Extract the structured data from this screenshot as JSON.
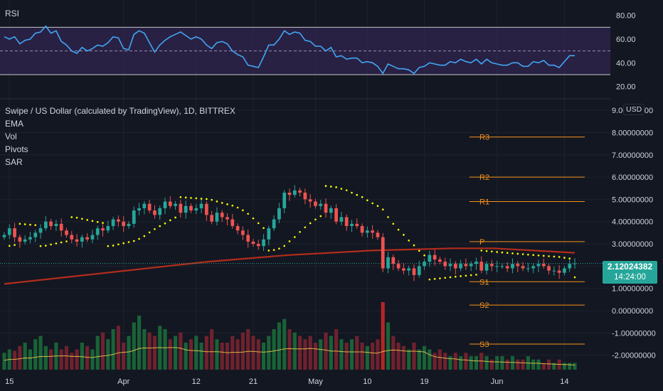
{
  "colors": {
    "background": "#131722",
    "grid": "#1e222d",
    "up": "#26a69a",
    "down": "#ef5350",
    "rsi_line": "#42a5f5",
    "rsi_band": "#3a2a5e",
    "ema": "#b22d1b",
    "sar": "#ffff00",
    "pivot": "#f7931a",
    "axis_text": "#d1d4dc",
    "vol_ma": "#ffd54f"
  },
  "chart_data": [
    {
      "type": "line",
      "title": "RSI",
      "yticks": [
        "80.00",
        "60.00",
        "40.00",
        "20.00"
      ],
      "ylim": [
        15,
        87
      ],
      "bands": {
        "upper": 70,
        "middle": 50,
        "lower": 30
      },
      "series": [
        {
          "values": [
            62,
            60,
            62,
            56,
            59,
            60,
            65,
            66,
            71,
            65,
            67,
            58,
            55,
            50,
            48,
            53,
            50,
            52,
            55,
            54,
            57,
            62,
            61,
            52,
            51,
            64,
            67,
            65,
            57,
            49,
            55,
            59,
            62,
            64,
            66,
            63,
            60,
            62,
            60,
            55,
            52,
            57,
            58,
            56,
            50,
            47,
            45,
            38,
            37,
            36,
            45,
            55,
            55,
            60,
            67,
            64,
            66,
            65,
            59,
            58,
            54,
            54,
            50,
            53,
            45,
            46,
            43,
            44,
            44,
            40,
            41,
            40,
            37,
            31,
            39,
            37,
            35,
            35,
            34,
            31,
            36,
            37,
            40,
            39,
            38,
            38,
            41,
            40,
            43,
            41,
            40,
            43,
            39,
            43,
            40,
            39,
            38,
            38,
            40,
            40,
            37,
            37,
            41,
            40,
            42,
            38,
            38,
            36,
            41,
            46,
            46
          ]
        }
      ]
    },
    {
      "type": "candlestick",
      "title": "Swipe / US Dollar (calculated by TradingView), 1D, BITTREX",
      "legend": [
        "EMA",
        "Vol",
        "Pivots",
        "SAR"
      ],
      "x_tick_labels": [
        "15",
        "Apr",
        "12",
        "21",
        "May",
        "10",
        "19",
        "Jun",
        "14"
      ],
      "yticks": [
        "9.00000000",
        "8.00000000",
        "7.00000000",
        "6.00000000",
        "5.00000000",
        "4.00000000",
        "3.00000000",
        "2.00000000",
        "1.00000000",
        "0.00000000",
        "-1.00000000",
        "-2.00000000"
      ],
      "ylim": [
        -2.3,
        9.1
      ],
      "unit": "USD",
      "last_price": "2.12024382",
      "countdown": "14:24:00",
      "pivots": [
        {
          "label": "R3",
          "value": 7.8
        },
        {
          "label": "R2",
          "value": 6.0
        },
        {
          "label": "R1",
          "value": 4.9
        },
        {
          "label": "P",
          "value": 3.1
        },
        {
          "label": "S1",
          "value": 1.3
        },
        {
          "label": "S2",
          "value": 0.25
        },
        {
          "label": "S3",
          "value": -1.5
        }
      ],
      "closes": [
        3.4,
        3.7,
        3.3,
        3.1,
        3.2,
        3.3,
        3.5,
        3.7,
        4.0,
        3.8,
        3.9,
        3.6,
        3.4,
        3.2,
        3.1,
        3.3,
        3.2,
        3.4,
        3.7,
        3.6,
        3.8,
        4.1,
        4.0,
        3.8,
        3.9,
        4.5,
        4.6,
        4.8,
        4.5,
        4.3,
        4.6,
        4.9,
        4.7,
        4.8,
        4.4,
        4.7,
        4.5,
        4.6,
        4.8,
        4.3,
        4.0,
        4.4,
        4.2,
        4.1,
        3.8,
        3.6,
        3.4,
        3.1,
        3.0,
        2.9,
        3.2,
        3.7,
        4.1,
        4.6,
        5.3,
        5.2,
        5.4,
        5.3,
        5.0,
        4.9,
        4.7,
        4.8,
        4.4,
        4.6,
        4.0,
        4.2,
        3.8,
        3.9,
        3.8,
        3.5,
        3.6,
        3.5,
        3.3,
        1.9,
        2.4,
        2.1,
        1.9,
        1.8,
        1.9,
        1.6,
        2.0,
        2.2,
        2.5,
        2.3,
        2.2,
        2.0,
        2.1,
        1.9,
        2.1,
        2.0,
        2.1,
        2.2,
        1.8,
        2.1,
        2.0,
        2.0,
        2.0,
        1.9,
        2.1,
        2.0,
        1.9,
        1.9,
        2.0,
        2.1,
        2.0,
        1.8,
        1.8,
        1.7,
        1.9,
        2.1,
        2.12
      ],
      "ema": [
        1.2,
        1.4,
        1.6,
        1.8,
        2.0,
        2.2,
        2.35,
        2.5,
        2.6,
        2.7,
        2.75,
        2.8,
        2.8,
        2.7,
        2.6
      ],
      "volume_relative": [
        0.25,
        0.3,
        0.28,
        0.35,
        0.4,
        0.3,
        0.45,
        0.5,
        0.35,
        0.3,
        0.4,
        0.3,
        0.35,
        0.25,
        0.3,
        0.4,
        0.35,
        0.3,
        0.5,
        0.55,
        0.45,
        0.6,
        0.65,
        0.4,
        0.5,
        0.7,
        0.8,
        0.6,
        0.55,
        0.5,
        0.65,
        0.6,
        0.45,
        0.5,
        0.55,
        0.4,
        0.45,
        0.5,
        0.4,
        0.5,
        0.6,
        0.45,
        0.4,
        0.4,
        0.5,
        0.45,
        0.55,
        0.6,
        0.5,
        0.45,
        0.4,
        0.5,
        0.6,
        0.7,
        0.75,
        0.6,
        0.55,
        0.5,
        0.45,
        0.5,
        0.4,
        0.45,
        0.55,
        0.5,
        0.6,
        0.45,
        0.4,
        0.45,
        0.5,
        0.4,
        0.35,
        0.4,
        0.45,
        1.0,
        0.7,
        0.5,
        0.4,
        0.35,
        0.3,
        0.4,
        0.3,
        0.35,
        0.3,
        0.25,
        0.3,
        0.25,
        0.2,
        0.25,
        0.2,
        0.25,
        0.2,
        0.2,
        0.25,
        0.2,
        0.15,
        0.2,
        0.2,
        0.15,
        0.2,
        0.15,
        0.15,
        0.2,
        0.15,
        0.15,
        0.1,
        0.15,
        0.1,
        0.15,
        0.1,
        0.1,
        0.1
      ]
    }
  ]
}
